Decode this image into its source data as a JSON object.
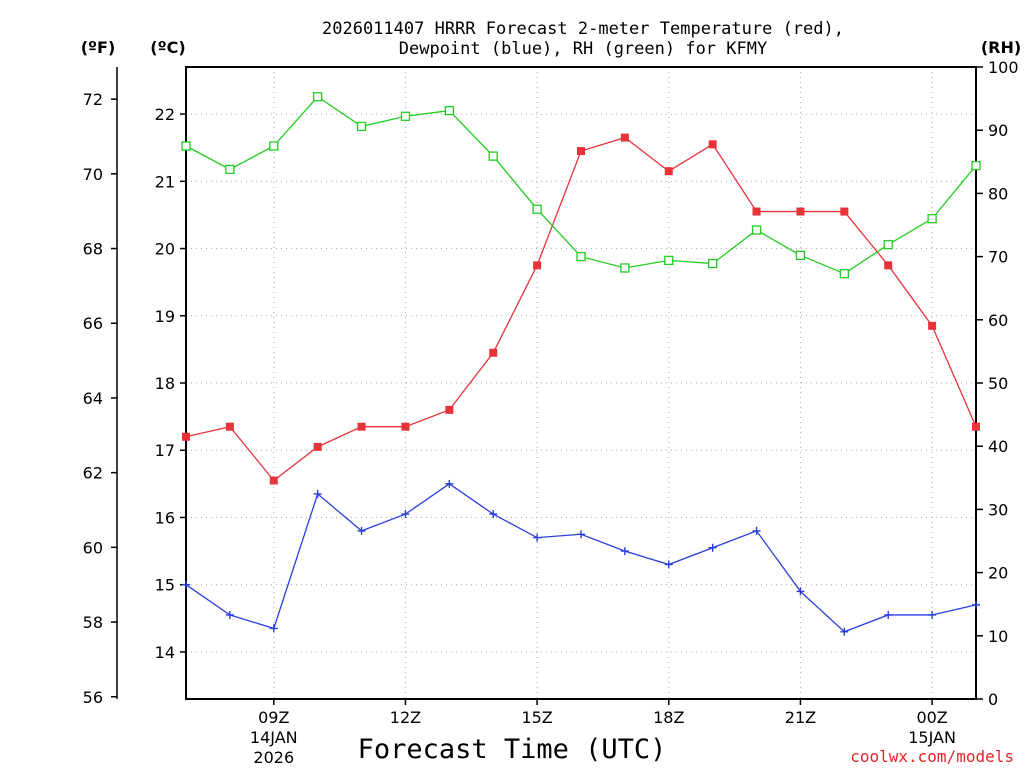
{
  "chart_data": {
    "type": "line",
    "title_line1": "2026011407 HRRR Forecast 2-meter Temperature (red),",
    "title_line2": "Dewpoint (blue), RH (green) for KFMY",
    "xlabel": "Forecast Time (UTC)",
    "credit": "coolwx.com/models",
    "units": {
      "fahrenheit": "(ºF)",
      "celsius": "(ºC)",
      "rh": "(RH)"
    },
    "x_hours": [
      7,
      8,
      9,
      10,
      11,
      12,
      13,
      14,
      15,
      16,
      17,
      18,
      19,
      20,
      21,
      22,
      23,
      24,
      25
    ],
    "xlim": [
      7,
      25
    ],
    "x_ticks": [
      {
        "hour": 9,
        "lines": [
          "09Z",
          "14JAN",
          "2026"
        ]
      },
      {
        "hour": 12,
        "lines": [
          "12Z"
        ]
      },
      {
        "hour": 15,
        "lines": [
          "15Z"
        ]
      },
      {
        "hour": 18,
        "lines": [
          "18Z"
        ]
      },
      {
        "hour": 21,
        "lines": [
          "21Z"
        ]
      },
      {
        "hour": 24,
        "lines": [
          "00Z",
          "15JAN"
        ]
      }
    ],
    "celsius_axis": {
      "ylim": [
        13.3,
        22.7
      ],
      "ticks": [
        "14",
        "15",
        "16",
        "17",
        "18",
        "19",
        "20",
        "21",
        "22"
      ]
    },
    "fahrenheit_axis": {
      "ylim": [
        55.94,
        72.86
      ],
      "ticks": [
        "56",
        "58",
        "60",
        "62",
        "64",
        "66",
        "68",
        "70",
        "72"
      ]
    },
    "rh_axis": {
      "ylim": [
        0,
        100
      ],
      "ticks": [
        "0",
        "10",
        "20",
        "30",
        "40",
        "50",
        "60",
        "70",
        "80",
        "90",
        "100"
      ]
    },
    "series": [
      {
        "name": "Temperature",
        "color": "#e8333a",
        "axis": "celsius",
        "marker": "filled-square",
        "values": [
          17.2,
          17.35,
          16.55,
          17.05,
          17.35,
          17.35,
          17.6,
          18.45,
          19.75,
          21.45,
          21.65,
          21.15,
          21.55,
          20.55,
          20.55,
          20.55,
          19.75,
          18.85,
          17.35
        ]
      },
      {
        "name": "Dewpoint",
        "color": "#2a3de0",
        "axis": "celsius",
        "marker": "plus",
        "values": [
          15.0,
          14.55,
          14.35,
          16.35,
          15.8,
          16.05,
          16.5,
          16.05,
          15.7,
          15.75,
          15.5,
          15.3,
          15.55,
          15.8,
          14.9,
          14.3,
          14.55,
          14.55,
          14.7
        ]
      },
      {
        "name": "RH",
        "color": "#22cc22",
        "axis": "rh",
        "marker": "open-square",
        "values": [
          87.5,
          83.8,
          87.5,
          95.3,
          90.6,
          92.2,
          93.1,
          85.9,
          77.5,
          70.0,
          68.2,
          69.4,
          68.9,
          74.2,
          70.2,
          67.3,
          71.9,
          76.0,
          84.4
        ]
      }
    ]
  }
}
